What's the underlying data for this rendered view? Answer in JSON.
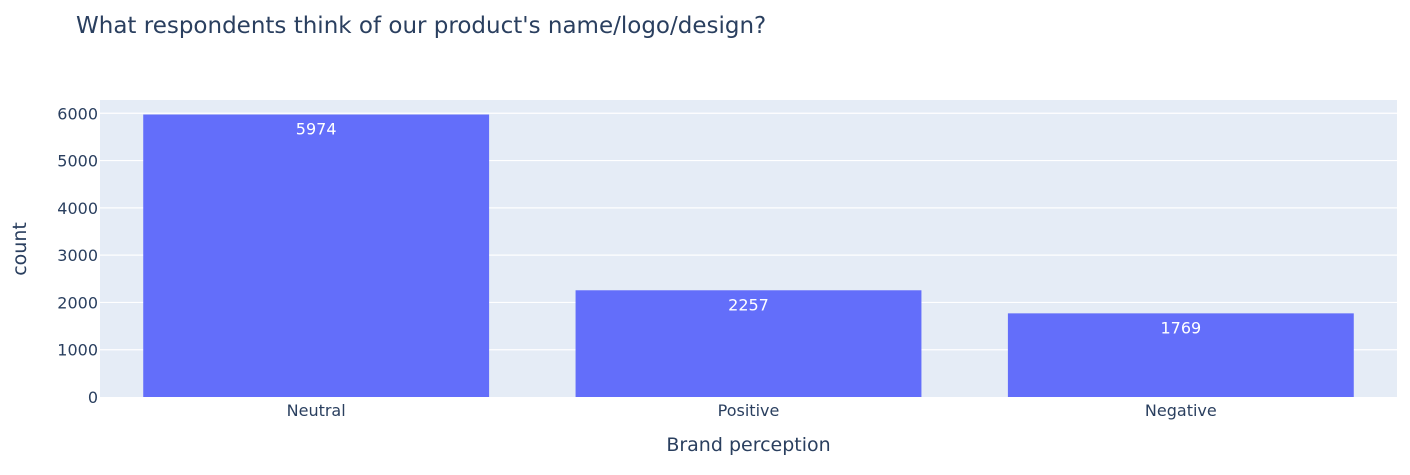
{
  "chart_data": {
    "type": "bar",
    "title": "What respondents think of our product's name/logo/design?",
    "xlabel": "Brand perception",
    "ylabel": "count",
    "categories": [
      "Neutral",
      "Positive",
      "Negative"
    ],
    "values": [
      5974,
      2257,
      1769
    ],
    "data_labels": [
      "5974",
      "2257",
      "1769"
    ],
    "ylim": [
      0,
      6281
    ],
    "yticks": [
      0,
      1000,
      2000,
      3000,
      4000,
      5000,
      6000
    ],
    "ytick_labels": [
      "0",
      "1000",
      "2000",
      "3000",
      "4000",
      "5000",
      "6000"
    ],
    "grid": true,
    "legend": "none",
    "colors": {
      "bar": "#636efa",
      "plot_background": "#e5ecf6",
      "gridline": "#ffffff",
      "text": "#2a3f5f",
      "bar_label": "#ffffff"
    }
  }
}
